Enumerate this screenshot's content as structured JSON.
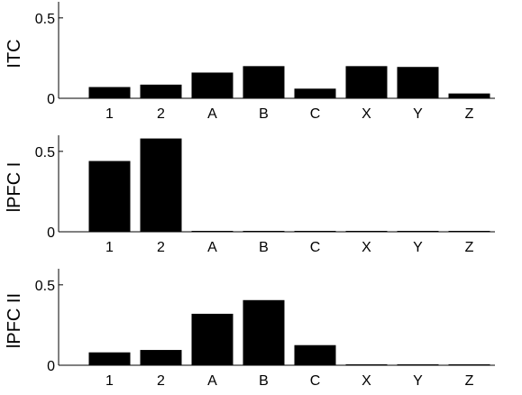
{
  "chart_data": [
    {
      "type": "bar",
      "ylabel": "ITC",
      "categories": [
        "1",
        "2",
        "A",
        "B",
        "C",
        "X",
        "Y",
        "Z"
      ],
      "values": [
        0.07,
        0.085,
        0.16,
        0.2,
        0.06,
        0.2,
        0.195,
        0.03
      ],
      "ylim": [
        0,
        0.6
      ],
      "yticks": [
        0,
        0.5
      ],
      "ytick_labels": [
        "0",
        "0.5"
      ],
      "grid": false,
      "bar_color": "#000000"
    },
    {
      "type": "bar",
      "ylabel": "lPFC I",
      "categories": [
        "1",
        "2",
        "A",
        "B",
        "C",
        "X",
        "Y",
        "Z"
      ],
      "values": [
        0.44,
        0.58,
        0.005,
        0.005,
        0.005,
        0.005,
        0.005,
        0.005
      ],
      "ylim": [
        0,
        0.6
      ],
      "yticks": [
        0,
        0.5
      ],
      "ytick_labels": [
        "0",
        "0.5"
      ],
      "grid": false,
      "bar_color": "#000000"
    },
    {
      "type": "bar",
      "ylabel": "lPFC II",
      "categories": [
        "1",
        "2",
        "A",
        "B",
        "C",
        "X",
        "Y",
        "Z"
      ],
      "values": [
        0.08,
        0.095,
        0.32,
        0.405,
        0.125,
        0.005,
        0.005,
        0.005
      ],
      "ylim": [
        0,
        0.6
      ],
      "yticks": [
        0,
        0.5
      ],
      "ytick_labels": [
        "0",
        "0.5"
      ],
      "grid": false,
      "bar_color": "#000000"
    }
  ]
}
